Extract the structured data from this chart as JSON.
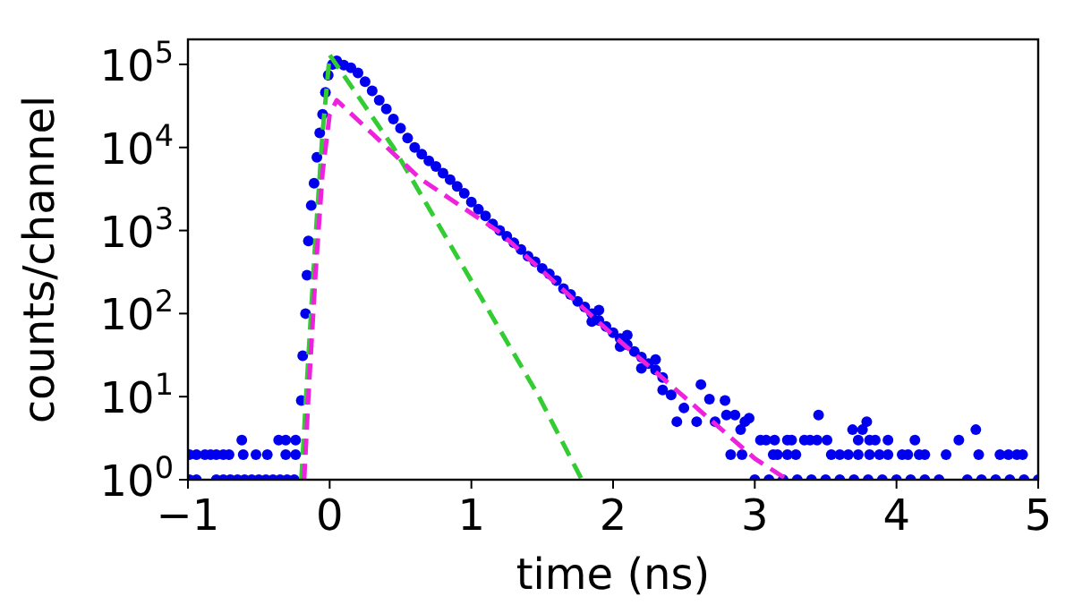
{
  "chart_data": {
    "type": "scatter",
    "xlabel": "time (ns)",
    "ylabel": "counts/channel",
    "log": "y",
    "grid": false,
    "xlim": [
      -1,
      5
    ],
    "xticks": [
      {
        "value": -1,
        "label": "−1"
      },
      0,
      1,
      2,
      3,
      4,
      5
    ],
    "ylim": [
      1,
      200000
    ],
    "yticks": [
      {
        "value": 1,
        "label": "10$^{0}$"
      },
      {
        "value": 10,
        "label": "10$^{1}$"
      },
      {
        "value": 100,
        "label": "10$^{2}$"
      },
      {
        "value": 1000,
        "label": "10$^{3}$"
      },
      {
        "value": 10000,
        "label": "10$^{4}$"
      },
      {
        "value": 100000,
        "label": "10$^{5}$"
      }
    ],
    "series": [
      {
        "marker": "circle",
        "color": "#0000ee",
        "x": [
          -0.99,
          -0.94,
          -0.88,
          -0.84,
          -0.8,
          -0.75,
          -0.71,
          -0.61,
          -0.52,
          -0.44,
          -0.31,
          -0.24,
          -0.62,
          -0.36,
          -0.31,
          -0.24,
          -0.99,
          -0.94,
          -0.8,
          -0.75,
          -0.7,
          -0.65,
          -0.6,
          -0.55,
          -0.5,
          -0.45,
          -0.4,
          -0.35,
          -0.3,
          -0.25,
          -0.2,
          -0.19,
          -0.17,
          -0.16,
          -0.15,
          -0.13,
          -0.11,
          -0.09,
          -0.07,
          -0.05,
          -0.03,
          -0.01,
          0.02,
          0.05,
          0.1,
          0.15,
          0.2,
          0.25,
          0.3,
          0.35,
          0.4,
          0.45,
          0.5,
          0.55,
          0.6,
          0.65,
          0.7,
          0.75,
          0.8,
          0.85,
          0.9,
          0.95,
          1.0,
          1.05,
          1.1,
          1.15,
          1.2,
          1.25,
          1.3,
          1.35,
          1.4,
          1.45,
          1.5,
          1.55,
          1.6,
          1.65,
          1.7,
          1.75,
          1.8,
          1.85,
          1.85,
          1.9,
          1.9,
          1.95,
          2.0,
          2.05,
          2.05,
          2.1,
          2.1,
          2.15,
          2.2,
          2.2,
          2.25,
          2.3,
          2.3,
          2.35,
          2.35,
          2.41,
          2.5,
          2.45,
          2.59,
          2.62,
          2.68,
          2.72,
          2.79,
          2.8,
          2.86,
          2.93,
          2.96,
          2.9,
          3.45,
          3.79,
          4.56,
          3.69,
          3.76,
          3.04,
          3.08,
          3.14,
          3.23,
          3.26,
          3.35,
          3.39,
          3.44,
          3.51,
          3.73,
          3.81,
          3.85,
          3.94,
          4.13,
          4.44,
          2.83,
          2.91,
          3.13,
          3.16,
          3.23,
          3.29,
          3.54,
          3.6,
          3.66,
          3.73,
          3.81,
          3.88,
          3.94,
          4.04,
          4.08,
          4.16,
          4.2,
          4.35,
          4.58,
          4.73,
          4.79,
          4.85,
          4.89,
          3.0,
          3.1,
          3.2,
          3.3,
          3.4,
          3.5,
          3.6,
          3.7,
          3.8,
          3.9,
          4.0,
          4.1,
          4.2,
          4.3,
          4.5,
          4.6,
          4.7,
          4.8,
          4.9,
          5.0
        ],
        "values": [
          2,
          2,
          2,
          2,
          2,
          2,
          2,
          2,
          2,
          2,
          2,
          2,
          3,
          3,
          3,
          3,
          1,
          1,
          1,
          1,
          1,
          1,
          1,
          1,
          1,
          1,
          1,
          1,
          1,
          1,
          9,
          31,
          100,
          290,
          750,
          2000,
          3700,
          7600,
          15000,
          25000,
          46000,
          74000,
          100000,
          110000,
          98000,
          91000,
          79000,
          62000,
          48000,
          37000,
          29000,
          22000,
          17000,
          13000,
          10000,
          8300,
          6900,
          5900,
          4900,
          4100,
          3400,
          2800,
          2200,
          1800,
          1500,
          1200,
          1000,
          850,
          710,
          590,
          490,
          420,
          350,
          300,
          250,
          200,
          170,
          140,
          120,
          100,
          80,
          83,
          110,
          70,
          59,
          50,
          40,
          42,
          55,
          35,
          30,
          22,
          25,
          21,
          28,
          17,
          12,
          10.5,
          7.3,
          5,
          5,
          14,
          9.3,
          5,
          9,
          6,
          6,
          5,
          5.5,
          4,
          6,
          5,
          4,
          4,
          4,
          3,
          3,
          3,
          3,
          3,
          3,
          3,
          3,
          3,
          3,
          3,
          3,
          3,
          3,
          3,
          2,
          2,
          2,
          2,
          2,
          2,
          2,
          2,
          2,
          2,
          2,
          2,
          2,
          2,
          2,
          2,
          2,
          2,
          2,
          2,
          2,
          2,
          2,
          1,
          1,
          1,
          1,
          1,
          1,
          1,
          1,
          1,
          1,
          1,
          1,
          1,
          1,
          1,
          1,
          1,
          1,
          1,
          1
        ]
      },
      {
        "type": "line",
        "marker": "none",
        "line_style": "dashed",
        "color": "#33cc33",
        "x": [
          -0.2,
          -0.15,
          -0.1,
          -0.05,
          0.0,
          0.45,
          1.47,
          1.78
        ],
        "values": [
          1,
          30,
          800,
          15000,
          130000,
          10000,
          10.5,
          1
        ]
      },
      {
        "type": "line",
        "marker": "none",
        "line_style": "dashed",
        "color": "#ee22dd",
        "x": [
          -0.18,
          -0.15,
          -0.1,
          -0.05,
          0.0,
          0.05,
          0.64,
          1.2,
          2.0,
          2.5,
          3.0,
          3.23
        ],
        "values": [
          1,
          10,
          300,
          5000,
          25000,
          37000,
          4200,
          950,
          55,
          10,
          1.8,
          1
        ]
      }
    ]
  }
}
